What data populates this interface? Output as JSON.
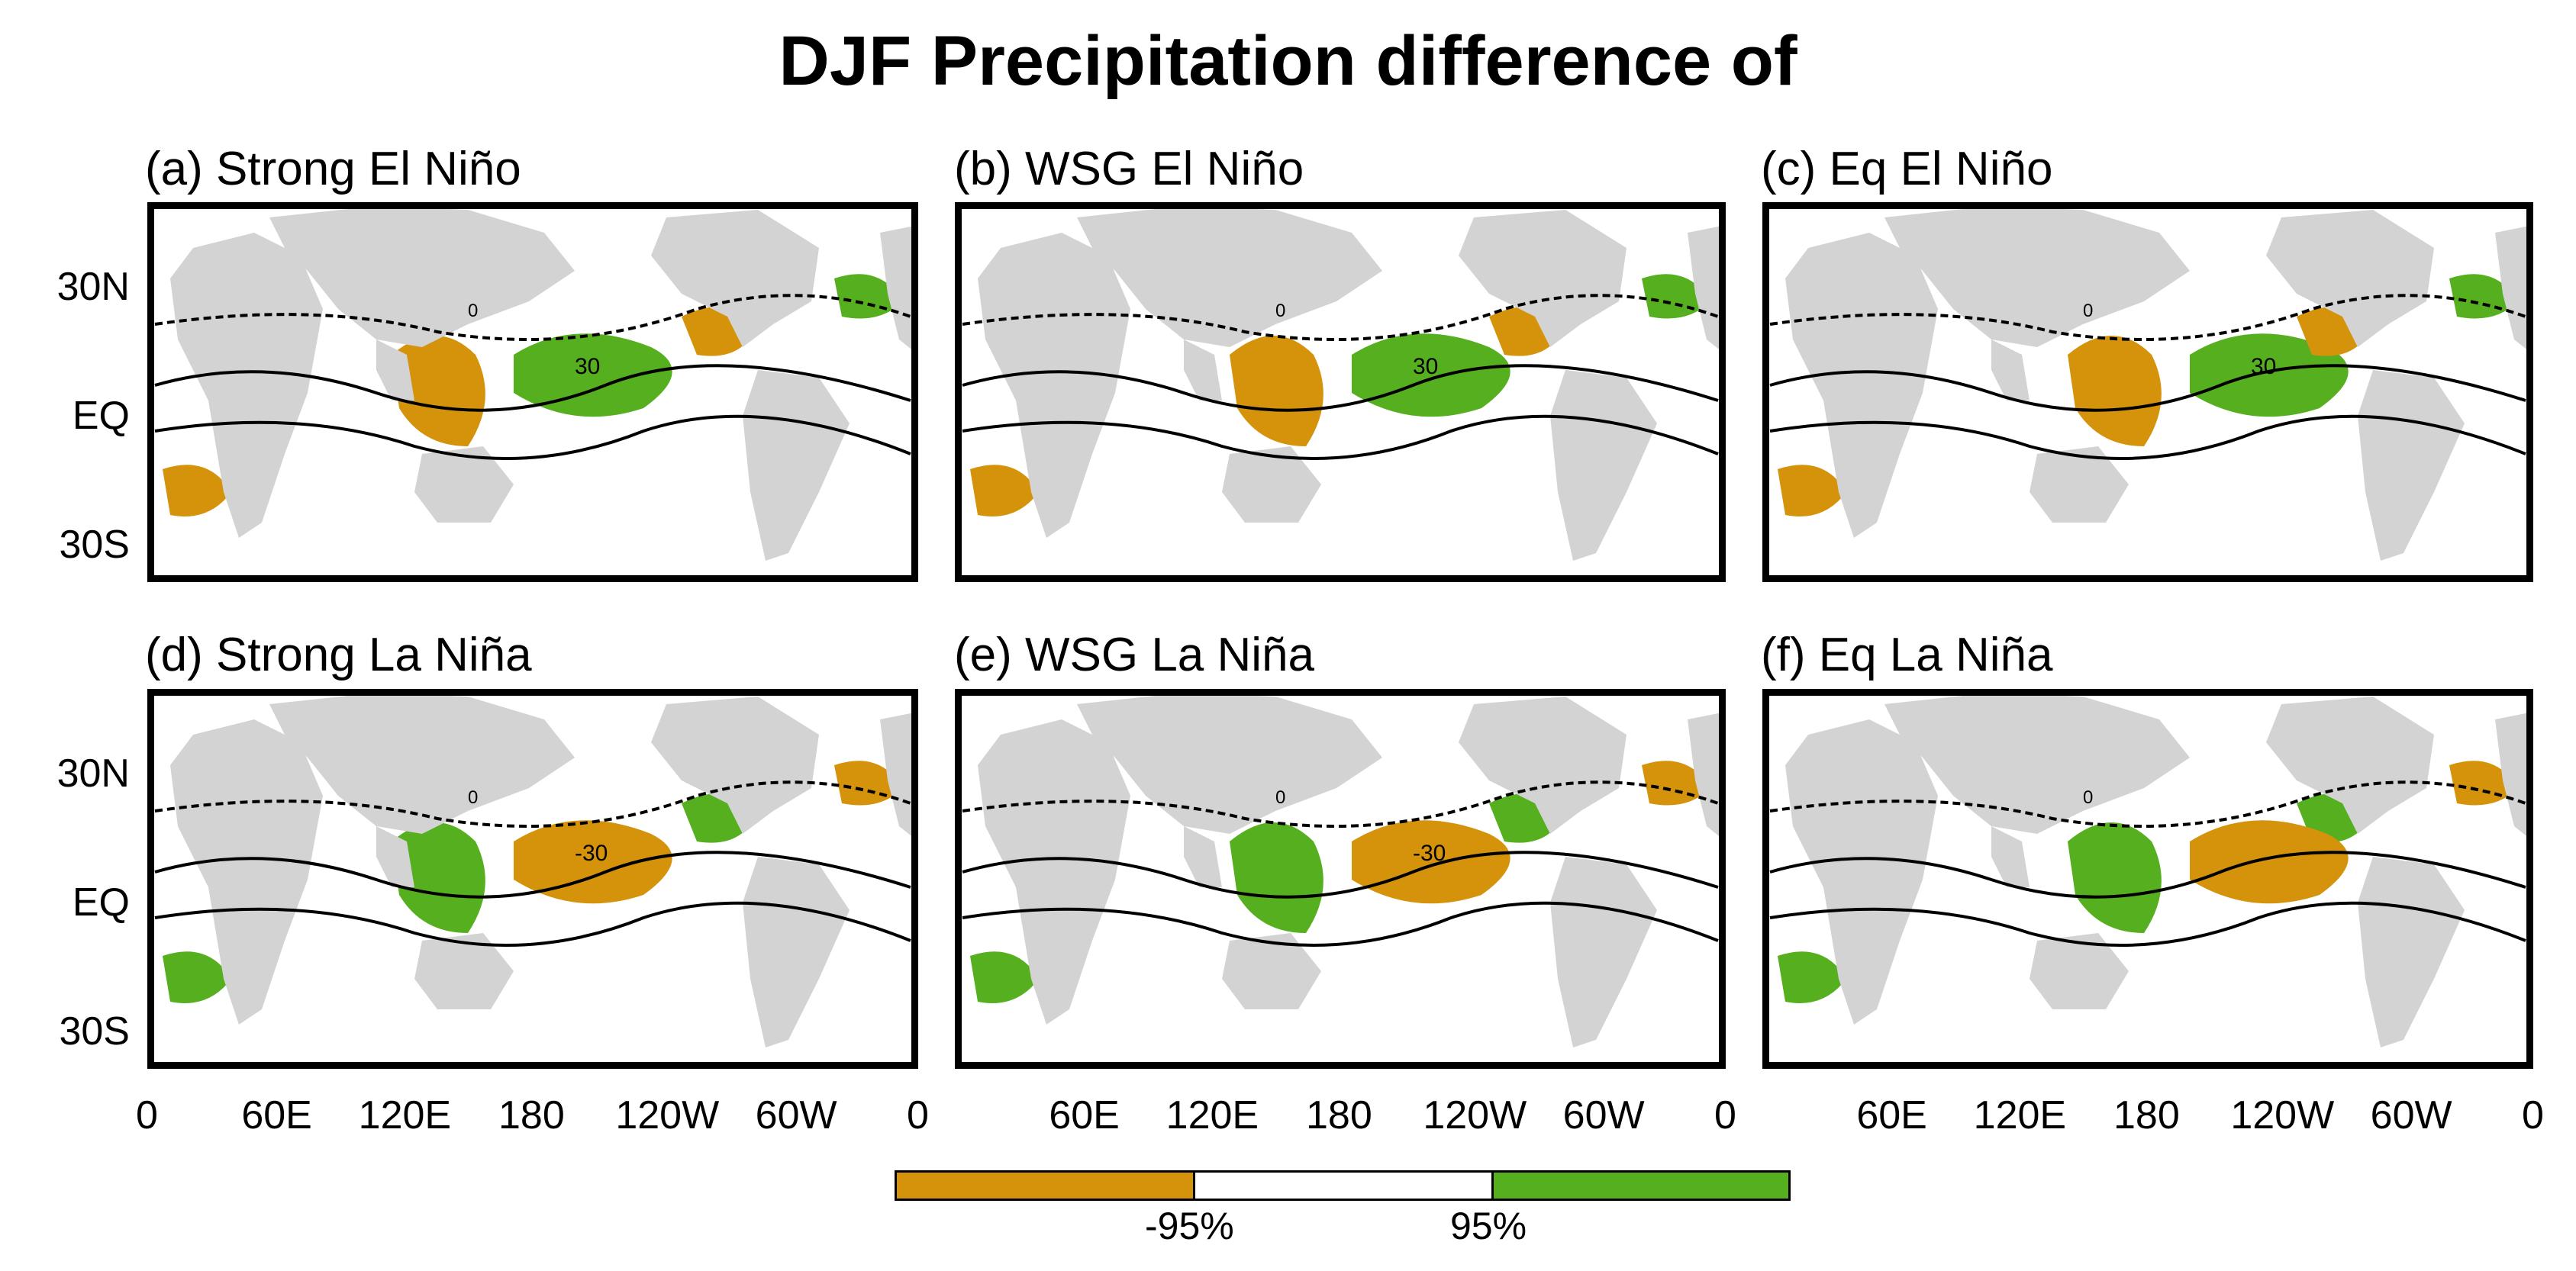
{
  "title": "DJF Precipitation difference of",
  "panels": [
    {
      "label": "(a) Strong El Niño",
      "contour_label": "30",
      "zero_label": "0"
    },
    {
      "label": "(b) WSG El Niño",
      "contour_label": "30",
      "zero_label": "0"
    },
    {
      "label": "(c) Eq El Niño",
      "contour_label": "30",
      "zero_label": "0"
    },
    {
      "label": "(d) Strong La Niña",
      "contour_label": "-30",
      "zero_label": "0"
    },
    {
      "label": "(e) WSG La Niña",
      "contour_label": "-30",
      "zero_label": "0"
    },
    {
      "label": "(f) Eq La Niña",
      "contour_label": "",
      "zero_label": "0"
    }
  ],
  "y_ticks": [
    "30N",
    "EQ",
    "30S"
  ],
  "x_ticks": [
    "0",
    "60E",
    "120E",
    "180",
    "120W",
    "60W",
    "0"
  ],
  "colorbar": {
    "labels": [
      "-95%",
      "95%"
    ],
    "colors": {
      "negative": "#D4930A",
      "neutral": "#FFFFFF",
      "positive": "#55AF1E"
    }
  },
  "colors": {
    "land": "#D3D3D3",
    "negative": "#D4930A",
    "positive": "#55AF1E"
  }
}
